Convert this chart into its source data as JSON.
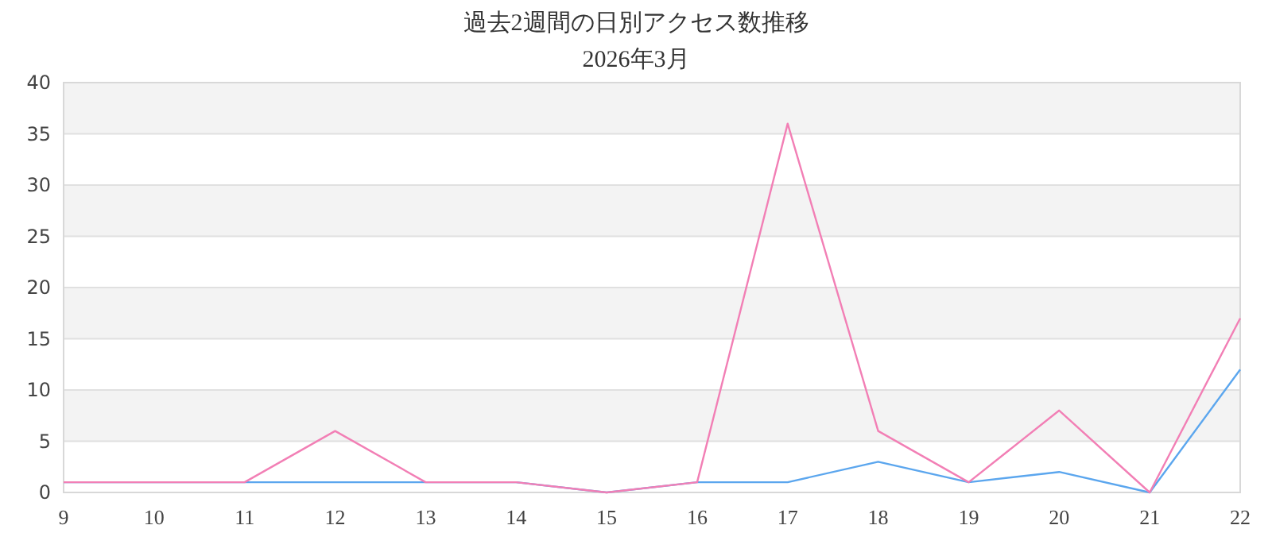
{
  "chart_data": {
    "type": "line",
    "title": "過去2週間の日別アクセス数推移",
    "subtitle": "2026年3月",
    "x": [
      9,
      10,
      11,
      12,
      13,
      14,
      15,
      16,
      17,
      18,
      19,
      20,
      21,
      22
    ],
    "series": [
      {
        "color": "#f27fb5",
        "values": [
          1,
          1,
          1,
          6,
          1,
          1,
          0,
          1,
          36,
          6,
          1,
          8,
          0,
          17
        ]
      },
      {
        "color": "#5ba6ee",
        "values": [
          1,
          1,
          1,
          1,
          1,
          1,
          0,
          1,
          1,
          3,
          1,
          2,
          0,
          12
        ]
      }
    ],
    "xlim": [
      9,
      22
    ],
    "xticks": [
      9,
      10,
      11,
      12,
      13,
      14,
      15,
      16,
      17,
      18,
      19,
      20,
      21,
      22
    ],
    "ylim": [
      0,
      40
    ],
    "yticks": [
      0,
      5,
      10,
      15,
      20,
      25,
      30,
      35,
      40
    ],
    "grid": "y",
    "marker": "none",
    "line_style": "solid"
  }
}
